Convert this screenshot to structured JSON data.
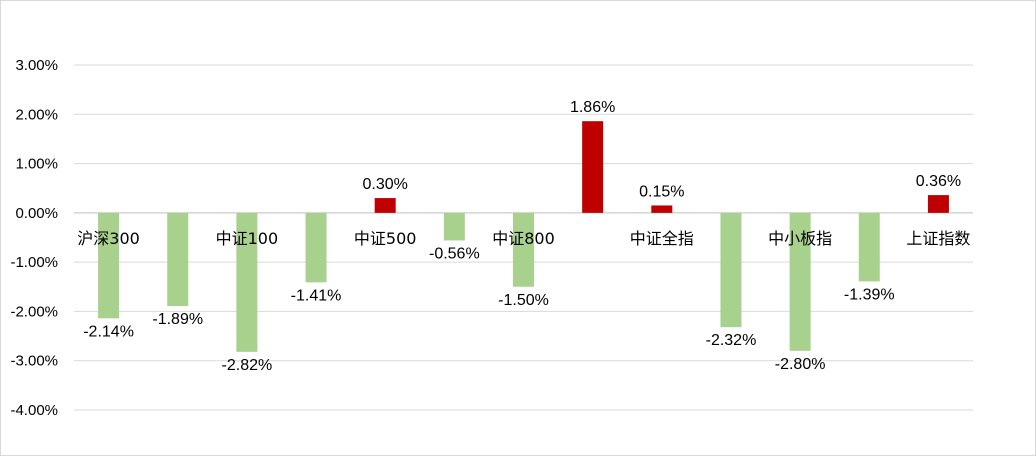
{
  "chart_data": {
    "type": "bar",
    "title": "",
    "xlabel": "",
    "ylabel": "",
    "ylim": [
      -0.04,
      0.03
    ],
    "y_ticks": [
      0.03,
      0.02,
      0.01,
      0.0,
      -0.01,
      -0.02,
      -0.03,
      -0.04
    ],
    "y_tick_labels": [
      "3.00%",
      "2.00%",
      "1.00%",
      "0.00%",
      "-1.00%",
      "-2.00%",
      "-3.00%",
      "-4.00%"
    ],
    "grid": true,
    "legend": "none",
    "categories": [
      "沪深300",
      "",
      "中证100",
      "",
      "中证500",
      "",
      "中证800",
      "",
      "中证全指",
      "",
      "中小板指",
      "",
      "上证指数"
    ],
    "values": [
      -0.0214,
      -0.0189,
      -0.0282,
      -0.0141,
      0.003,
      -0.0056,
      -0.015,
      0.0186,
      0.0015,
      -0.0232,
      -0.028,
      -0.0139,
      0.0036
    ],
    "data_labels": [
      "-2.14%",
      "-1.89%",
      "-2.82%",
      "-1.41%",
      "0.30%",
      "-0.56%",
      "-1.50%",
      "1.86%",
      "0.15%",
      "-2.32%",
      "-2.80%",
      "-1.39%",
      "0.36%"
    ],
    "colors": {
      "positive": "#C00000",
      "negative": "#A9D18E",
      "grid": "#d9d9d9",
      "axis": "#bfbfbf"
    }
  }
}
